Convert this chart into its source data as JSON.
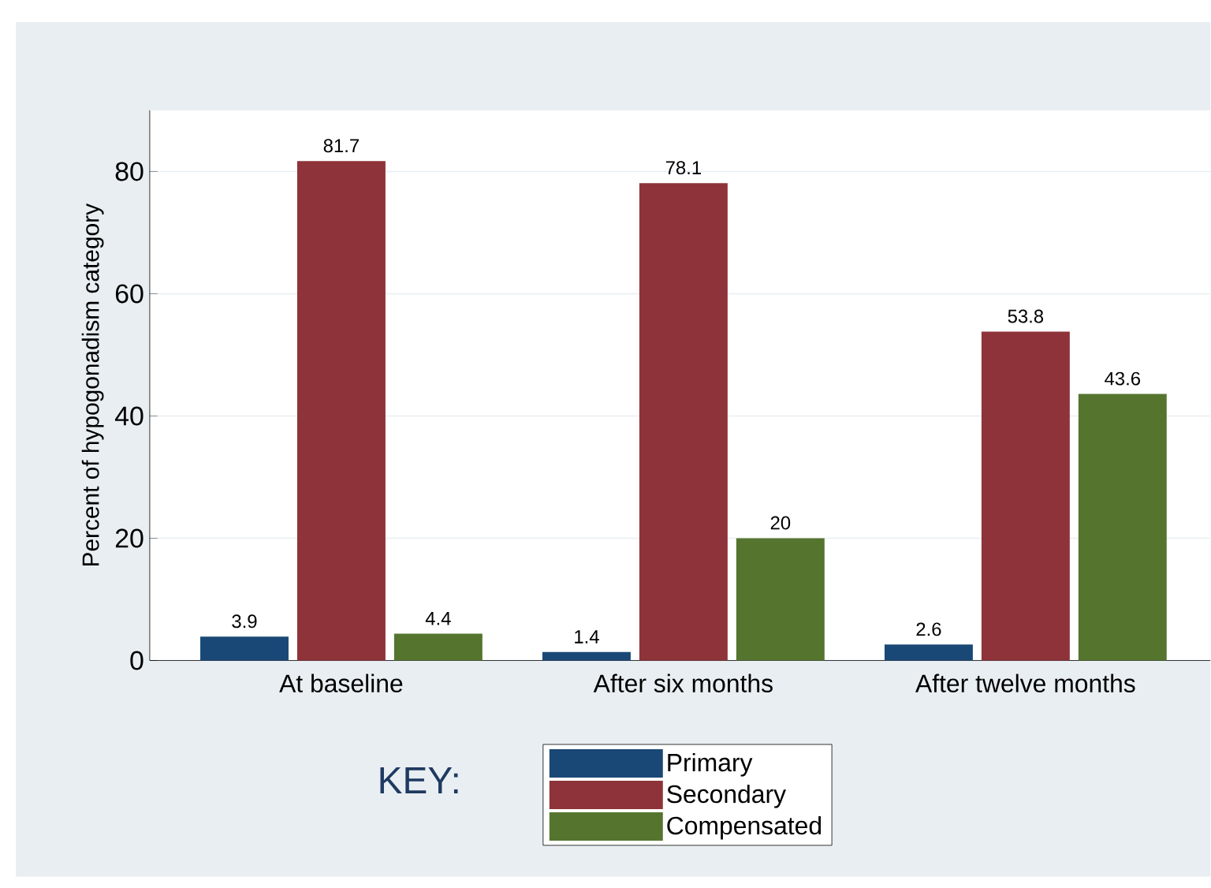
{
  "chart_data": {
    "type": "bar",
    "ylabel": "Percent of hypogonadism category",
    "legend_title": "KEY:",
    "categories": [
      "At baseline",
      "After six months",
      "After twelve months"
    ],
    "series": [
      {
        "name": "Primary",
        "color": "#1a4876",
        "values": [
          3.9,
          1.4,
          2.6
        ]
      },
      {
        "name": "Secondary",
        "color": "#8e3339",
        "values": [
          81.7,
          78.1,
          53.8
        ]
      },
      {
        "name": "Compensated",
        "color": "#55752f",
        "values": [
          4.4,
          20,
          43.6
        ]
      }
    ],
    "ylim": [
      0,
      90
    ],
    "yticks": [
      0,
      20,
      40,
      60,
      80
    ],
    "grid": "y",
    "legend": "bottom",
    "data_labels": true
  }
}
